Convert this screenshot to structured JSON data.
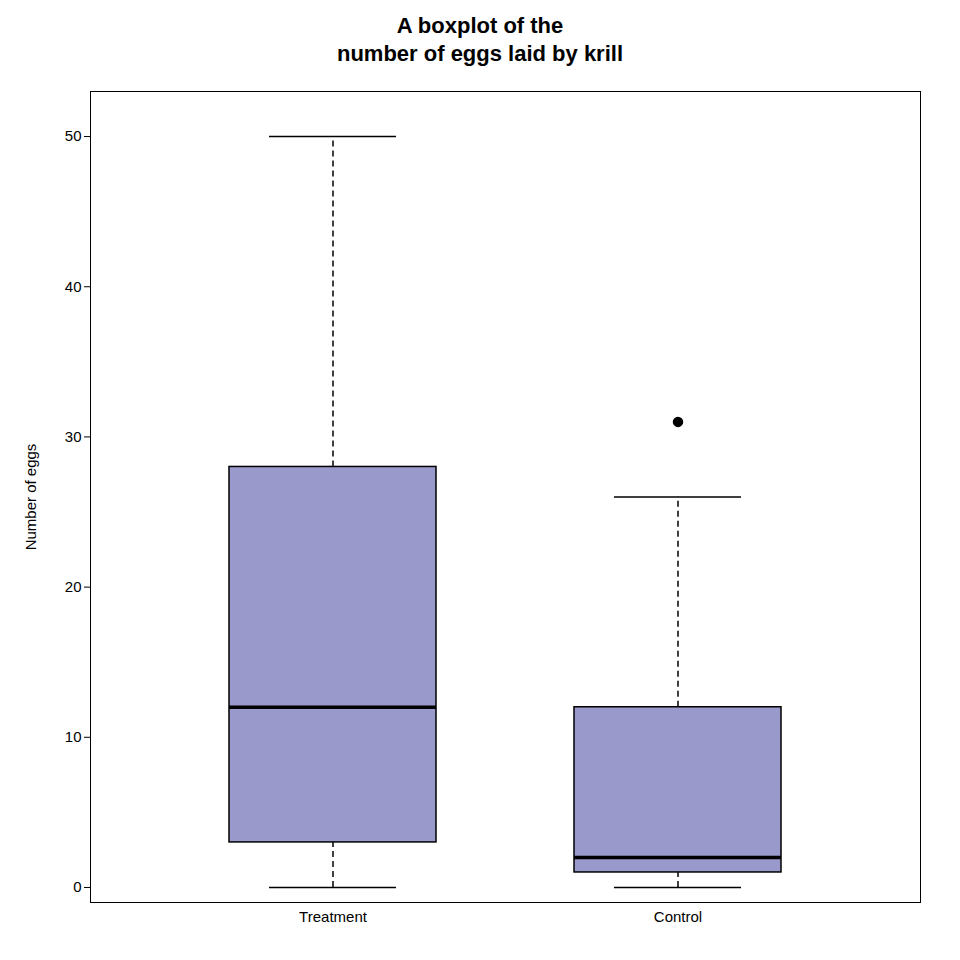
{
  "chart_data": {
    "type": "box",
    "title": "A boxplot of the\nnumber of eggs laid by krill",
    "ylabel": "Number of eggs",
    "categories": [
      "Treatment",
      "Control"
    ],
    "boxes": [
      {
        "q1": 3,
        "median": 12,
        "q3": 28,
        "whisker_low": 0,
        "whisker_high": 50,
        "outliers": []
      },
      {
        "q1": 1,
        "median": 2,
        "q3": 12,
        "whisker_low": 0,
        "whisker_high": 26,
        "outliers": [
          31
        ]
      }
    ],
    "color": "#9999CC",
    "ylim": [
      -1,
      53
    ],
    "yticks": [
      0,
      10,
      20,
      30,
      40,
      50
    ],
    "grid": false
  }
}
